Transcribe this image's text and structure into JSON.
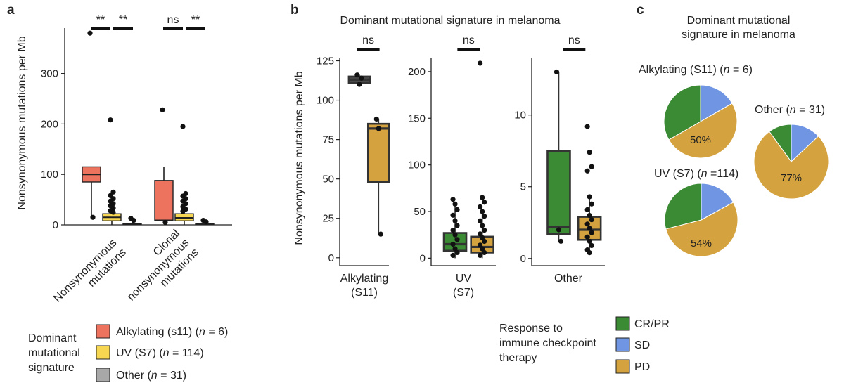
{
  "colors": {
    "alkylating": "#ee735f",
    "uv": "#f7d752",
    "other": "#a8a8a8",
    "crpr": "#3b8a34",
    "sd": "#6f95e3",
    "pd": "#d4a33f",
    "darkbox": "#4a4a4a"
  },
  "panel_a": {
    "letter": "a",
    "ylabel": "Nonsynonymous mutations per Mb",
    "legend_title": [
      "Dominant",
      "mutational",
      "signature"
    ],
    "legend": [
      {
        "pre": "Alkylating (s11) (",
        "n": "n",
        "post": " = 6)",
        "color_key": "alkylating"
      },
      {
        "pre": "UV (S7) (",
        "n": "n",
        "post": " = 114)",
        "color_key": "uv"
      },
      {
        "pre": "Other (",
        "n": "n",
        "post": " = 31)",
        "color_key": "other"
      }
    ]
  },
  "panel_b": {
    "letter": "b",
    "title": "Dominant mutational signature in melanoma",
    "ylabel": "Nonsynonymous mutations per Mb",
    "legend_title": [
      "Response to",
      "immune checkpoint",
      "therapy"
    ],
    "legend": [
      {
        "label": "CR/PR",
        "color_key": "crpr"
      },
      {
        "label": "SD",
        "color_key": "sd"
      },
      {
        "label": "PD",
        "color_key": "pd"
      }
    ]
  },
  "panel_c": {
    "letter": "c",
    "title": [
      "Dominant mutational",
      "signature in melanoma"
    ]
  },
  "chart_data": [
    {
      "type": "box",
      "panel": "a",
      "ylabel": "Nonsynonymous mutations per Mb",
      "ylim": [
        0,
        390
      ],
      "yticks": [
        0,
        100,
        200,
        300
      ],
      "categories": [
        {
          "lines": [
            "Nonsynonymous",
            "mutations"
          ]
        },
        {
          "lines": [
            "Clonal",
            "nonsynonymous",
            "mutations"
          ]
        }
      ],
      "series": [
        "Alkylating (s11)",
        "UV (S7)",
        "Other"
      ],
      "boxes": [
        {
          "category": 0,
          "series": 0,
          "q1": 85,
          "median": 100,
          "q3": 115,
          "whisker_low": 15,
          "whisker_high": 115,
          "outliers": [
            380,
            15
          ]
        },
        {
          "category": 0,
          "series": 1,
          "q1": 8,
          "median": 15,
          "q3": 22,
          "whisker_low": 0,
          "whisker_high": 45,
          "outliers": [
            208,
            65,
            58,
            52,
            47,
            42,
            38,
            33,
            28,
            25
          ]
        },
        {
          "category": 0,
          "series": 2,
          "q1": 1,
          "median": 2,
          "q3": 3,
          "whisker_low": 0,
          "whisker_high": 5,
          "outliers": [
            13,
            9
          ]
        },
        {
          "category": 1,
          "series": 0,
          "q1": 8,
          "median": 9,
          "q3": 88,
          "whisker_low": 5,
          "whisker_high": 115,
          "outliers": [
            228,
            5
          ]
        },
        {
          "category": 1,
          "series": 1,
          "q1": 8,
          "median": 14,
          "q3": 22,
          "whisker_low": 0,
          "whisker_high": 42,
          "outliers": [
            195,
            62,
            57,
            52,
            47,
            42,
            36,
            31,
            27
          ]
        },
        {
          "category": 1,
          "series": 2,
          "q1": 1,
          "median": 2,
          "q3": 3,
          "whisker_low": 0,
          "whisker_high": 5,
          "outliers": [
            9,
            6
          ]
        }
      ],
      "significance": [
        {
          "category": 0,
          "labels": [
            "**",
            "**"
          ]
        },
        {
          "category": 1,
          "labels": [
            "ns",
            "**"
          ]
        }
      ]
    },
    {
      "type": "box",
      "panel": "b",
      "title": "Dominant mutational signature in melanoma",
      "ylabel": "Nonsynonymous mutations per Mb",
      "series": [
        "CR/PR",
        "PD"
      ],
      "facets": [
        {
          "label_lines": [
            "Alkylating",
            "(S11)"
          ],
          "ylim": [
            -5,
            127
          ],
          "yticks": [
            0,
            25,
            50,
            75,
            100,
            125
          ],
          "significance": "ns",
          "boxes": [
            {
              "series": 0,
              "q1": 111,
              "median": 113,
              "q3": 115,
              "whisker_low": 110,
              "whisker_high": 116,
              "points": [
                116,
                110,
                114
              ],
              "color_key": "darkbox"
            },
            {
              "series": 1,
              "q1": 48,
              "median": 82,
              "q3": 85,
              "whisker_low": 15,
              "whisker_high": 88,
              "points": [
                88,
                82,
                15
              ]
            }
          ]
        },
        {
          "label_lines": [
            "UV",
            "(S7)"
          ],
          "ylim": [
            -8,
            215
          ],
          "yticks": [
            0,
            50,
            100,
            150,
            200
          ],
          "significance": "ns",
          "boxes": [
            {
              "series": 0,
              "q1": 8,
              "median": 15,
              "q3": 27,
              "whisker_low": 0,
              "whisker_high": 55,
              "points": [
                63,
                58,
                52,
                46,
                40,
                35,
                30,
                25,
                20,
                15,
                10,
                6,
                3
              ]
            },
            {
              "series": 1,
              "q1": 6,
              "median": 12,
              "q3": 23,
              "whisker_low": 0,
              "whisker_high": 50,
              "points": [
                209,
                65,
                60,
                55,
                50,
                45,
                40,
                35,
                30,
                26,
                22,
                18,
                14,
                10,
                6,
                3
              ]
            }
          ]
        },
        {
          "label_lines": [
            "Other"
          ],
          "ylim": [
            -0.5,
            14
          ],
          "yticks": [
            0,
            5,
            10
          ],
          "significance": "ns",
          "boxes": [
            {
              "series": 0,
              "q1": 1.7,
              "median": 2.2,
              "q3": 7.5,
              "whisker_low": 1.2,
              "whisker_high": 13,
              "points": [
                13,
                2,
                1.2
              ]
            },
            {
              "series": 1,
              "q1": 1.3,
              "median": 2,
              "q3": 2.9,
              "whisker_low": 0.4,
              "whisker_high": 4.3,
              "points": [
                9.2,
                7.4,
                6.4,
                6.1,
                4.3,
                3.8,
                3.4,
                3.0,
                2.7,
                2.4,
                2.1,
                1.8,
                1.5,
                1.2,
                0.9,
                0.6,
                0.4
              ]
            }
          ]
        }
      ]
    },
    {
      "type": "pie",
      "panel": "c",
      "title": "Dominant mutational signature in melanoma",
      "categories": [
        "CR/PR",
        "SD",
        "PD"
      ],
      "pies": [
        {
          "pre": "Alkylating (S11) (",
          "n": "n",
          "post": " = 6)",
          "values": [
            33.3,
            16.7,
            50
          ],
          "label": "50%"
        },
        {
          "pre": "UV (S7) (",
          "n": "n",
          "post": " =114)",
          "values": [
            29,
            17,
            54
          ],
          "label": "54%"
        },
        {
          "pre": "Other (",
          "n": "n",
          "post": " = 31)",
          "values": [
            10,
            13,
            77
          ],
          "label": "77%"
        }
      ]
    }
  ]
}
